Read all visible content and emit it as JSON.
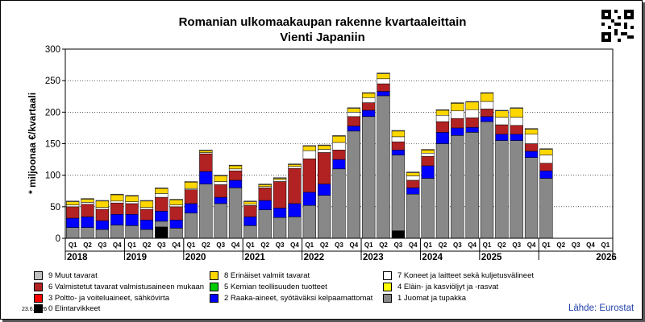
{
  "title_line1": "Romanian ulkomaakaupan rakenne kvartaaleittain",
  "title_line2": "Vienti Japaniin",
  "date": "23.6.2026",
  "source": "Lähde: Eurostat",
  "chart_data": {
    "type": "bar",
    "stacked": true,
    "ylabel": "* miljoonaa €/kvartaali",
    "ylim": [
      0,
      300
    ],
    "yticks": [
      0,
      50,
      100,
      150,
      200,
      250,
      300
    ],
    "grid": true,
    "quarter_labels": [
      "Q1",
      "Q2",
      "Q3",
      "Q4",
      "Q1",
      "Q2",
      "Q3",
      "Q4",
      "Q1",
      "Q2",
      "Q3",
      "Q4",
      "Q1",
      "Q2",
      "Q3",
      "Q4",
      "Q1",
      "Q2",
      "Q3",
      "Q4",
      "Q1",
      "Q2",
      "Q3",
      "Q4",
      "Q1",
      "Q2",
      "Q3",
      "Q4",
      "Q1",
      "Q2",
      "Q3",
      "Q4",
      "Q1",
      "Q2",
      "Q3",
      "Q4",
      "Q1"
    ],
    "years": [
      "2018",
      "2019",
      "2020",
      "2021",
      "2022",
      "2023",
      "2024",
      "2025",
      "2026"
    ],
    "series": [
      {
        "name": "0 Elintarvikkeet",
        "color": "#000000",
        "values": [
          0,
          0,
          0,
          0,
          0,
          0,
          18,
          0,
          0,
          0,
          0,
          0,
          0,
          0,
          0,
          0,
          0,
          0,
          0,
          0,
          0,
          0,
          12,
          0,
          0,
          0,
          0,
          0,
          0,
          0,
          0,
          0,
          0,
          0,
          0,
          0,
          0
        ]
      },
      {
        "name": "1 Juomat ja tupakka",
        "color": "#888888",
        "values": [
          17,
          17,
          14,
          21,
          20,
          14,
          9,
          16,
          40,
          86,
          55,
          80,
          20,
          45,
          33,
          34,
          52,
          68,
          110,
          170,
          193,
          226,
          120,
          70,
          95,
          150,
          163,
          168,
          185,
          155,
          155,
          128,
          95,
          0,
          0,
          0,
          0
        ]
      },
      {
        "name": "2 Raaka-aineet, syötäväksi kelpaamattomat",
        "color": "#0000ff",
        "values": [
          15,
          17,
          14,
          17,
          18,
          15,
          16,
          13,
          15,
          20,
          10,
          12,
          14,
          15,
          15,
          21,
          21,
          18,
          15,
          8,
          10,
          7,
          8,
          10,
          20,
          18,
          12,
          8,
          8,
          10,
          10,
          10,
          12,
          0,
          0,
          0,
          0
        ]
      },
      {
        "name": "3 Poltto- ja voiteluaineet, sähkövirta",
        "color": "#ff0000",
        "values": [
          0,
          0,
          0,
          0,
          0,
          0,
          0,
          0,
          0,
          0,
          0,
          0,
          0,
          0,
          0,
          0,
          0,
          0,
          0,
          0,
          0,
          0,
          0,
          0,
          0,
          0,
          0,
          0,
          0,
          0,
          0,
          0,
          0,
          0,
          0,
          0,
          0
        ]
      },
      {
        "name": "4 Eläin- ja kasviöljyt ja -rasvat",
        "color": "#ffff00",
        "values": [
          0,
          0,
          0,
          0,
          0,
          0,
          0,
          0,
          0,
          0,
          0,
          0,
          0,
          0,
          0,
          0,
          0,
          0,
          0,
          0,
          0,
          0,
          0,
          0,
          0,
          0,
          0,
          0,
          0,
          0,
          0,
          0,
          0,
          0,
          0,
          0,
          0
        ]
      },
      {
        "name": "5 Kemian teollisuuden tuotteet",
        "color": "#00cc00",
        "values": [
          0,
          0,
          0,
          0,
          0,
          0,
          0,
          0,
          0,
          0,
          0,
          0,
          0,
          0,
          0,
          0,
          0,
          0,
          0,
          0,
          0,
          0,
          0,
          0,
          0,
          0,
          0,
          0,
          0,
          0,
          0,
          0,
          0,
          0,
          0,
          0,
          0
        ]
      },
      {
        "name": "6 Valmistetut tavarat valmistusaineen mukaan",
        "color": "#b22222",
        "values": [
          18,
          20,
          18,
          18,
          17,
          17,
          22,
          21,
          22,
          28,
          20,
          15,
          18,
          20,
          42,
          56,
          53,
          50,
          15,
          15,
          12,
          12,
          13,
          12,
          15,
          17,
          15,
          15,
          12,
          15,
          14,
          12,
          12,
          0,
          0,
          0,
          0
        ]
      },
      {
        "name": "7 Koneet ja laitteet sekä kuljetusvälineet",
        "color": "#ffffff",
        "values": [
          3,
          3,
          3,
          3,
          3,
          3,
          6,
          3,
          2,
          2,
          5,
          3,
          2,
          2,
          3,
          3,
          13,
          5,
          12,
          7,
          8,
          8,
          8,
          7,
          5,
          10,
          12,
          13,
          12,
          12,
          13,
          15,
          13,
          0,
          0,
          0,
          0
        ]
      },
      {
        "name": "8 Erinäiset valmiit tavarat",
        "color": "#ffd700",
        "values": [
          5,
          5,
          10,
          10,
          9,
          10,
          8,
          8,
          10,
          3,
          9,
          5,
          4,
          3,
          2,
          3,
          7,
          6,
          10,
          6,
          7,
          8,
          9,
          5,
          5,
          8,
          12,
          12,
          13,
          10,
          14,
          8,
          9,
          0,
          0,
          0,
          0
        ]
      },
      {
        "name": "9 Muut tavarat",
        "color": "#c0c0c0",
        "values": [
          1,
          1,
          1,
          1,
          1,
          1,
          1,
          1,
          1,
          1,
          1,
          1,
          1,
          1,
          1,
          1,
          1,
          1,
          1,
          1,
          1,
          1,
          1,
          1,
          1,
          1,
          1,
          1,
          1,
          1,
          1,
          1,
          1,
          0,
          0,
          0,
          0
        ]
      }
    ]
  },
  "legend": [
    {
      "label": "9 Muut tavarat",
      "color": "#c0c0c0"
    },
    {
      "label": "8 Erinäiset valmiit tavarat",
      "color": "#ffd700"
    },
    {
      "label": "7 Koneet ja laitteet sekä kuljetusvälineet",
      "color": "#ffffff"
    },
    {
      "label": "6 Valmistetut tavarat valmistusaineen mukaan",
      "color": "#b22222"
    },
    {
      "label": "5 Kemian teollisuuden tuotteet",
      "color": "#00cc00"
    },
    {
      "label": "4 Eläin- ja kasviöljyt ja -rasvat",
      "color": "#ffff00"
    },
    {
      "label": "3 Poltto- ja voiteluaineet, sähkövirta",
      "color": "#ff0000"
    },
    {
      "label": "2 Raaka-aineet, syötäväksi kelpaamattomat",
      "color": "#0000ff"
    },
    {
      "label": "1 Juomat ja tupakka",
      "color": "#888888"
    },
    {
      "label": "0 Elintarvikkeet",
      "color": "#000000"
    }
  ]
}
